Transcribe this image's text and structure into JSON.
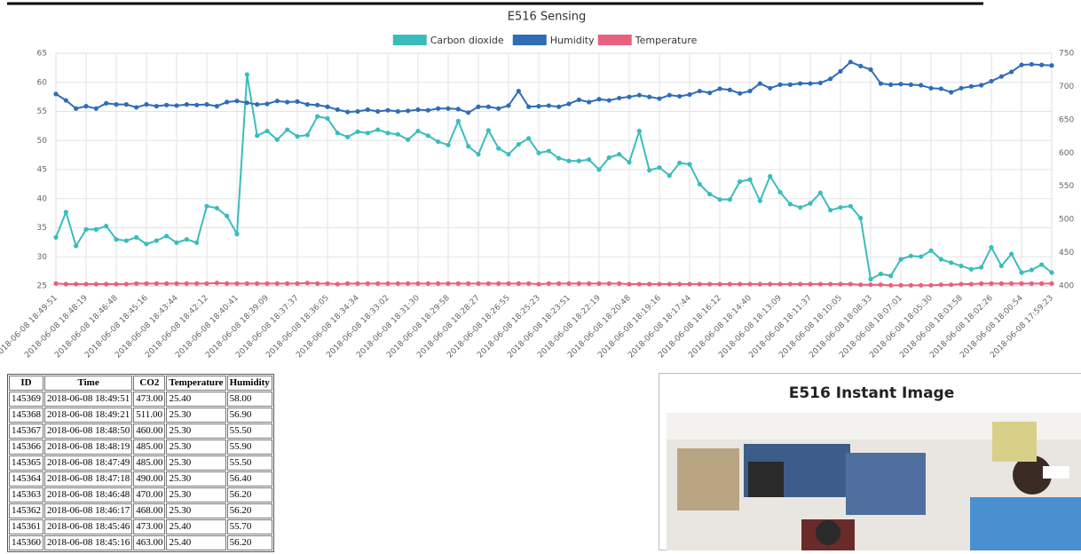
{
  "chart_data": {
    "type": "line",
    "title": "E516 Sensing",
    "categories": [
      "2018-06-08 18:49:51",
      null,
      null,
      "2018-06-08 18:48:19",
      null,
      null,
      "2018-06-08 18:46:48",
      null,
      null,
      "2018-06-08 18:45:16",
      null,
      null,
      "2018-06-08 18:43:44",
      null,
      null,
      "2018-06-08 18:42:12",
      null,
      null,
      "2018-06-08 18:40:41",
      null,
      null,
      "2018-06-08 18:39:09",
      null,
      null,
      "2018-06-08 18:37:37",
      null,
      null,
      "2018-06-08 18:36:05",
      null,
      null,
      "2018-06-08 18:34:34",
      null,
      null,
      "2018-06-08 18:33:02",
      null,
      null,
      "2018-06-08 18:31:30",
      null,
      null,
      "2018-06-08 18:29:58",
      null,
      null,
      "2018-06-08 18:28:27",
      null,
      null,
      "2018-06-08 18:26:55",
      null,
      null,
      "2018-06-08 18:25:23",
      null,
      null,
      "2018-06-08 18:23:51",
      null,
      null,
      "2018-06-08 18:22:19",
      null,
      null,
      "2018-06-08 18:20:48",
      null,
      null,
      "2018-06-08 18:19:16",
      null,
      null,
      "2018-06-08 18:17:44",
      null,
      null,
      "2018-06-08 18:16:12",
      null,
      null,
      "2018-06-08 18:14:40",
      null,
      null,
      "2018-06-08 18:13:09",
      null,
      null,
      "2018-06-08 18:11:37",
      null,
      null,
      "2018-06-08 18:10:05",
      null,
      null,
      "2018-06-08 18:08:33",
      null,
      null,
      "2018-06-08 18:07:01",
      null,
      null,
      "2018-06-08 18:05:30",
      null,
      null,
      "2018-06-08 18:03:58",
      null,
      null,
      "2018-06-08 18:02:26",
      null,
      null,
      "2018-06-08 18:00:54",
      null,
      null,
      "2018-06-08 17:59:23"
    ],
    "series": [
      {
        "name": "Carbon dioxide",
        "color": "#3bbcbc",
        "axis": "y2",
        "values": [
          473,
          511,
          460,
          485,
          485,
          490,
          470,
          468,
          473,
          463,
          468,
          475,
          465,
          470,
          465,
          520,
          517,
          505,
          478,
          718,
          626,
          633,
          620,
          635,
          625,
          627,
          655,
          652,
          630,
          624,
          632,
          630,
          635,
          630,
          628,
          620,
          633,
          626,
          617,
          612,
          648,
          610,
          598,
          634,
          607,
          598,
          613,
          622,
          600,
          603,
          592,
          588,
          588,
          590,
          575,
          593,
          598,
          586,
          633,
          574,
          578,
          566,
          585,
          583,
          553,
          538,
          530,
          530,
          557,
          560,
          528,
          565,
          541,
          523,
          518,
          524,
          540,
          514,
          518,
          520,
          502,
          410,
          418,
          415,
          440,
          445,
          444,
          453,
          440,
          435,
          430,
          425,
          428,
          458,
          430,
          448,
          420,
          424,
          432,
          420
        ]
      },
      {
        "name": "Humidity",
        "color": "#2f6db7",
        "values": [
          58,
          56.9,
          55.5,
          55.9,
          55.5,
          56.4,
          56.2,
          56.2,
          55.7,
          56.2,
          55.9,
          56.1,
          56.0,
          56.2,
          56.1,
          56.2,
          55.9,
          56.6,
          56.8,
          56.5,
          56.2,
          56.3,
          56.8,
          56.6,
          56.7,
          56.2,
          56.1,
          55.8,
          55.3,
          54.9,
          55.0,
          55.3,
          55.0,
          55.2,
          55.0,
          55.1,
          55.3,
          55.2,
          55.5,
          55.5,
          55.4,
          54.8,
          55.8,
          55.8,
          55.5,
          56.0,
          58.5,
          55.8,
          55.9,
          56.0,
          55.8,
          56.3,
          57.0,
          56.6,
          57.1,
          56.9,
          57.3,
          57.5,
          57.8,
          57.5,
          57.2,
          57.8,
          57.6,
          57.9,
          58.5,
          58.2,
          58.9,
          58.7,
          58.1,
          58.5,
          59.8,
          59.0,
          59.6,
          59.6,
          59.8,
          59.8,
          59.9,
          60.6,
          61.9,
          63.5,
          62.8,
          62.2,
          59.8,
          59.6,
          59.7,
          59.6,
          59.5,
          59.0,
          58.9,
          58.3,
          59.0,
          59.3,
          59.5,
          60.2,
          61.0,
          61.8,
          63.0,
          63.1,
          63.0,
          62.9
        ]
      },
      {
        "name": "Temperature",
        "color": "#e8607e",
        "values": [
          25.4,
          25.3,
          25.3,
          25.3,
          25.3,
          25.3,
          25.3,
          25.3,
          25.4,
          25.4,
          25.4,
          25.4,
          25.4,
          25.4,
          25.4,
          25.4,
          25.5,
          25.4,
          25.4,
          25.4,
          25.4,
          25.4,
          25.4,
          25.4,
          25.4,
          25.5,
          25.4,
          25.4,
          25.3,
          25.4,
          25.4,
          25.4,
          25.4,
          25.4,
          25.4,
          25.4,
          25.4,
          25.4,
          25.4,
          25.4,
          25.4,
          25.4,
          25.4,
          25.4,
          25.4,
          25.4,
          25.4,
          25.4,
          25.3,
          25.4,
          25.4,
          25.4,
          25.4,
          25.4,
          25.4,
          25.4,
          25.4,
          25.3,
          25.3,
          25.3,
          25.3,
          25.3,
          25.3,
          25.3,
          25.3,
          25.3,
          25.3,
          25.3,
          25.3,
          25.3,
          25.3,
          25.3,
          25.3,
          25.3,
          25.3,
          25.3,
          25.3,
          25.3,
          25.3,
          25.3,
          25.2,
          25.2,
          25.2,
          25.1,
          25.1,
          25.1,
          25.1,
          25.1,
          25.2,
          25.2,
          25.3,
          25.3,
          25.4,
          25.4,
          25.4,
          25.4,
          25.4,
          25.4,
          25.4,
          25.4
        ]
      }
    ],
    "ylim": [
      25,
      65
    ],
    "yticks": [
      25,
      30,
      35,
      40,
      45,
      50,
      55,
      60,
      65
    ],
    "y2lim": [
      400,
      750
    ],
    "y2ticks": [
      400,
      450,
      500,
      550,
      600,
      650,
      700,
      750
    ],
    "grid": true,
    "legend": "top"
  },
  "table": {
    "header": [
      "ID",
      "Time",
      "CO2",
      "Temperature",
      "Humidity"
    ],
    "rows": [
      [
        "145369",
        "2018-06-08 18:49:51",
        "473.00",
        "25.40",
        "58.00"
      ],
      [
        "145368",
        "2018-06-08 18:49:21",
        "511.00",
        "25.30",
        "56.90"
      ],
      [
        "145367",
        "2018-06-08 18:48:50",
        "460.00",
        "25.30",
        "55.50"
      ],
      [
        "145366",
        "2018-06-08 18:48:19",
        "485.00",
        "25.30",
        "55.90"
      ],
      [
        "145365",
        "2018-06-08 18:47:49",
        "485.00",
        "25.30",
        "55.50"
      ],
      [
        "145364",
        "2018-06-08 18:47:18",
        "490.00",
        "25.30",
        "56.40"
      ],
      [
        "145363",
        "2018-06-08 18:46:48",
        "470.00",
        "25.30",
        "56.20"
      ],
      [
        "145362",
        "2018-06-08 18:46:17",
        "468.00",
        "25.30",
        "56.20"
      ],
      [
        "145361",
        "2018-06-08 18:45:46",
        "473.00",
        "25.40",
        "55.70"
      ],
      [
        "145360",
        "2018-06-08 18:45:16",
        "463.00",
        "25.40",
        "56.20"
      ]
    ]
  },
  "image_panel": {
    "title": "E516 Instant Image"
  }
}
